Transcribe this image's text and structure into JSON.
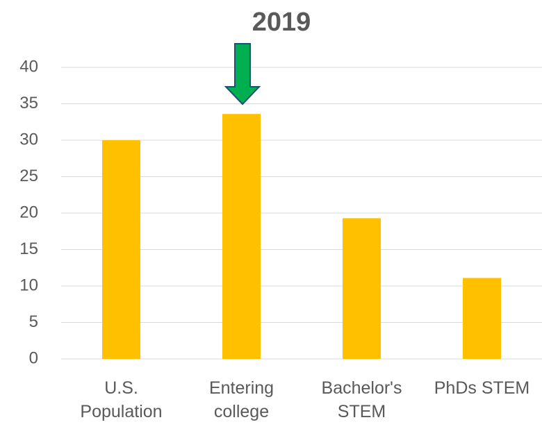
{
  "chart_data": {
    "type": "bar",
    "title": "2019",
    "categories": [
      "U.S. Population",
      "Entering college",
      "Bachelor's STEM",
      "PhDs STEM"
    ],
    "values": [
      30,
      33.6,
      19.3,
      11.1
    ],
    "color": "#ffc000",
    "ylim": [
      0,
      40
    ],
    "yticks": [
      0,
      5,
      10,
      15,
      20,
      25,
      30,
      35,
      40
    ],
    "grid": true
  }
}
